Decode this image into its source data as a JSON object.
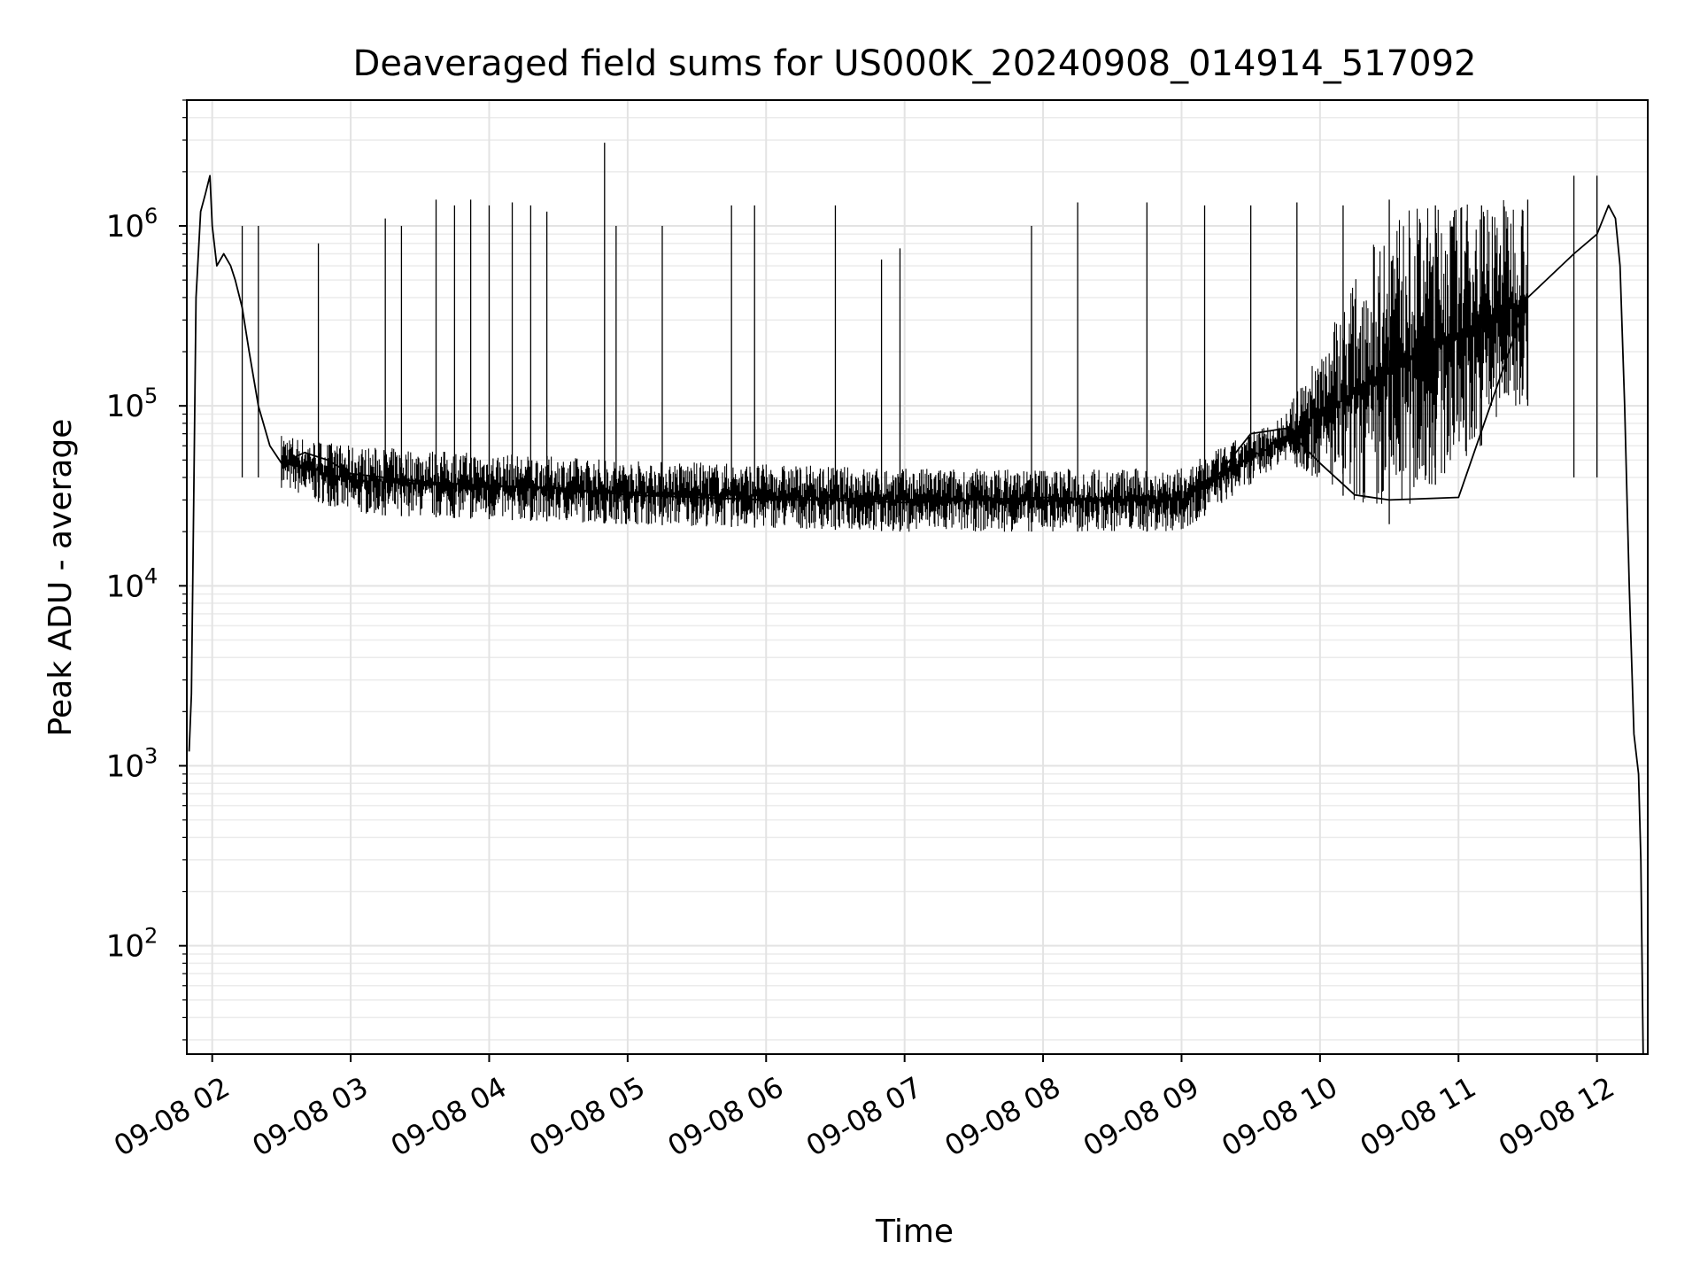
{
  "chart_data": {
    "type": "line",
    "title": "Deaveraged field sums for US000K_20240908_014914_517092",
    "xlabel": "Time",
    "ylabel": "Peak ADU - average",
    "yscale": "log",
    "grid": true,
    "xlim": [
      "09-08 01:49",
      "09-08 12:22"
    ],
    "ylim": [
      25,
      5000000
    ],
    "x_ticks": [
      "09-08 02",
      "09-08 03",
      "09-08 04",
      "09-08 05",
      "09-08 06",
      "09-08 07",
      "09-08 08",
      "09-08 09",
      "09-08 10",
      "09-08 11",
      "09-08 12"
    ],
    "y_ticks": [
      {
        "base": "10",
        "exp": "2",
        "value": 100
      },
      {
        "base": "10",
        "exp": "3",
        "value": 1000
      },
      {
        "base": "10",
        "exp": "4",
        "value": 10000
      },
      {
        "base": "10",
        "exp": "5",
        "value": 100000
      },
      {
        "base": "10",
        "exp": "6",
        "value": 1000000
      }
    ],
    "line_color": "#000000",
    "series": [
      {
        "x": [
          "09-08 01:50",
          "09-08 01:51",
          "09-08 01:52",
          "09-08 01:53",
          "09-08 01:55",
          "09-08 01:57",
          "09-08 01:59",
          "09-08 02:00",
          "09-08 02:02",
          "09-08 02:05",
          "09-08 02:08",
          "09-08 02:10",
          "09-08 02:13",
          "09-08 02:16",
          "09-08 02:20",
          "09-08 02:25",
          "09-08 02:30",
          "09-08 02:40",
          "09-08 02:50",
          "09-08 03:00",
          "09-08 03:30",
          "09-08 04:00",
          "09-08 04:30",
          "09-08 05:00",
          "09-08 05:30",
          "09-08 06:00",
          "09-08 06:30",
          "09-08 07:00",
          "09-08 07:30",
          "09-08 08:00",
          "09-08 08:30",
          "09-08 09:00",
          "09-08 09:15",
          "09-08 09:30",
          "09-08 09:45",
          "09-08 10:00",
          "09-08 10:15",
          "09-08 10:30",
          "09-08 11:00",
          "09-08 11:30",
          "09-08 11:50",
          "09-08 12:00",
          "09-08 12:05",
          "09-08 12:08",
          "09-08 12:10",
          "09-08 12:12",
          "09-08 12:14",
          "09-08 12:16",
          "09-08 12:18",
          "09-08 12:19",
          "09-08 12:20"
        ],
        "y": [
          1200,
          2500,
          30000,
          400000,
          1200000,
          1500000,
          1900000,
          1000000,
          600000,
          700000,
          600000,
          500000,
          350000,
          200000,
          100000,
          60000,
          48000,
          55000,
          50000,
          42000,
          38000,
          36000,
          35000,
          32000,
          31000,
          30000,
          30000,
          29000,
          30000,
          31000,
          30000,
          30000,
          40000,
          70000,
          75000,
          48000,
          32000,
          30000,
          31000,
          400000,
          700000,
          900000,
          1300000,
          1100000,
          600000,
          100000,
          10000,
          1500,
          900,
          300,
          25
        ]
      }
    ],
    "spikes": [
      {
        "x": "09-08 02:13",
        "y": 1000000
      },
      {
        "x": "09-08 02:20",
        "y": 1000000
      },
      {
        "x": "09-08 02:46",
        "y": 800000
      },
      {
        "x": "09-08 03:15",
        "y": 1100000
      },
      {
        "x": "09-08 03:22",
        "y": 1000000
      },
      {
        "x": "09-08 03:37",
        "y": 1400000
      },
      {
        "x": "09-08 03:45",
        "y": 1300000
      },
      {
        "x": "09-08 03:52",
        "y": 1400000
      },
      {
        "x": "09-08 04:00",
        "y": 1300000
      },
      {
        "x": "09-08 04:10",
        "y": 1350000
      },
      {
        "x": "09-08 04:18",
        "y": 1300000
      },
      {
        "x": "09-08 04:25",
        "y": 1200000
      },
      {
        "x": "09-08 04:50",
        "y": 2900000
      },
      {
        "x": "09-08 04:55",
        "y": 1000000
      },
      {
        "x": "09-08 05:15",
        "y": 1000000
      },
      {
        "x": "09-08 05:45",
        "y": 1300000
      },
      {
        "x": "09-08 05:55",
        "y": 1300000
      },
      {
        "x": "09-08 06:30",
        "y": 1300000
      },
      {
        "x": "09-08 06:50",
        "y": 650000
      },
      {
        "x": "09-08 06:58",
        "y": 750000
      },
      {
        "x": "09-08 07:55",
        "y": 1000000
      },
      {
        "x": "09-08 08:15",
        "y": 1350000
      },
      {
        "x": "09-08 08:45",
        "y": 1350000
      },
      {
        "x": "09-08 09:10",
        "y": 1300000
      },
      {
        "x": "09-08 09:30",
        "y": 1300000
      },
      {
        "x": "09-08 09:50",
        "y": 1350000
      },
      {
        "x": "09-08 10:10",
        "y": 1300000
      },
      {
        "x": "09-08 10:30",
        "y": 1400000
      },
      {
        "x": "09-08 10:50",
        "y": 1300000
      },
      {
        "x": "09-08 11:10",
        "y": 1300000
      },
      {
        "x": "09-08 11:30",
        "y": 1400000
      },
      {
        "x": "09-08 11:50",
        "y": 1900000
      },
      {
        "x": "09-08 12:00",
        "y": 1900000
      }
    ],
    "noise_band": [
      {
        "x": "09-08 02:30",
        "low": 35000,
        "high": 70000
      },
      {
        "x": "09-08 03:00",
        "low": 25000,
        "high": 60000
      },
      {
        "x": "09-08 05:00",
        "low": 22000,
        "high": 50000
      },
      {
        "x": "09-08 07:00",
        "low": 20000,
        "high": 45000
      },
      {
        "x": "09-08 09:00",
        "low": 20000,
        "high": 45000
      },
      {
        "x": "09-08 09:45",
        "low": 50000,
        "high": 90000
      },
      {
        "x": "09-08 10:30",
        "low": 22000,
        "high": 1200000
      },
      {
        "x": "09-08 11:30",
        "low": 100000,
        "high": 1500000
      }
    ]
  }
}
